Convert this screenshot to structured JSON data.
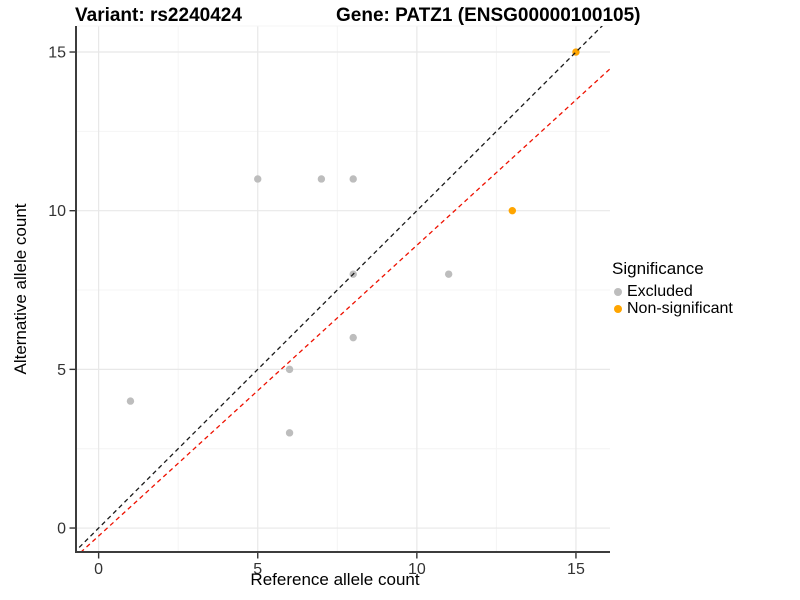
{
  "titles": {
    "left": "Variant: rs2240424",
    "right": "Gene: PATZ1 (ENSG00000100105)"
  },
  "chart_data": {
    "type": "scatter",
    "xlabel": "Reference allele count",
    "ylabel": "Alternative allele count",
    "xlim": [
      -0.68,
      16.07
    ],
    "ylim": [
      -0.755,
      15.82
    ],
    "x_ticks": [
      0,
      5,
      10,
      15
    ],
    "y_ticks": [
      0,
      5,
      10,
      15
    ],
    "minor_ticks": [
      2.5,
      7.5,
      12.5
    ],
    "grid": true,
    "series": [
      {
        "name": "Excluded",
        "color": "#BDBDBD",
        "points": [
          [
            1,
            4
          ],
          [
            5,
            11
          ],
          [
            6,
            3
          ],
          [
            6,
            5
          ],
          [
            7,
            11
          ],
          [
            8,
            6
          ],
          [
            8,
            8
          ],
          [
            8,
            11
          ],
          [
            11,
            8
          ]
        ]
      },
      {
        "name": "Non-significant",
        "color": "#FFA500",
        "points": [
          [
            13,
            10
          ],
          [
            15,
            15
          ]
        ]
      }
    ],
    "lines": [
      {
        "name": "identity-line",
        "slope": 1,
        "intercept": 0,
        "color": "#1A1A1A"
      },
      {
        "name": "fit-line",
        "slope": 0.916,
        "intercept": -0.25,
        "color": "#EE1100"
      }
    ],
    "legend": {
      "title": "Significance",
      "position": "right",
      "items": [
        {
          "label": "Excluded",
          "color": "#BDBDBD"
        },
        {
          "label": "Non-significant",
          "color": "#FFA500"
        }
      ]
    },
    "colors": {
      "grid_major": "#E8E8E8",
      "grid_minor": "#F4F4F4",
      "axis_line": "#3C3C3C",
      "tick_mark": "#333333"
    }
  }
}
